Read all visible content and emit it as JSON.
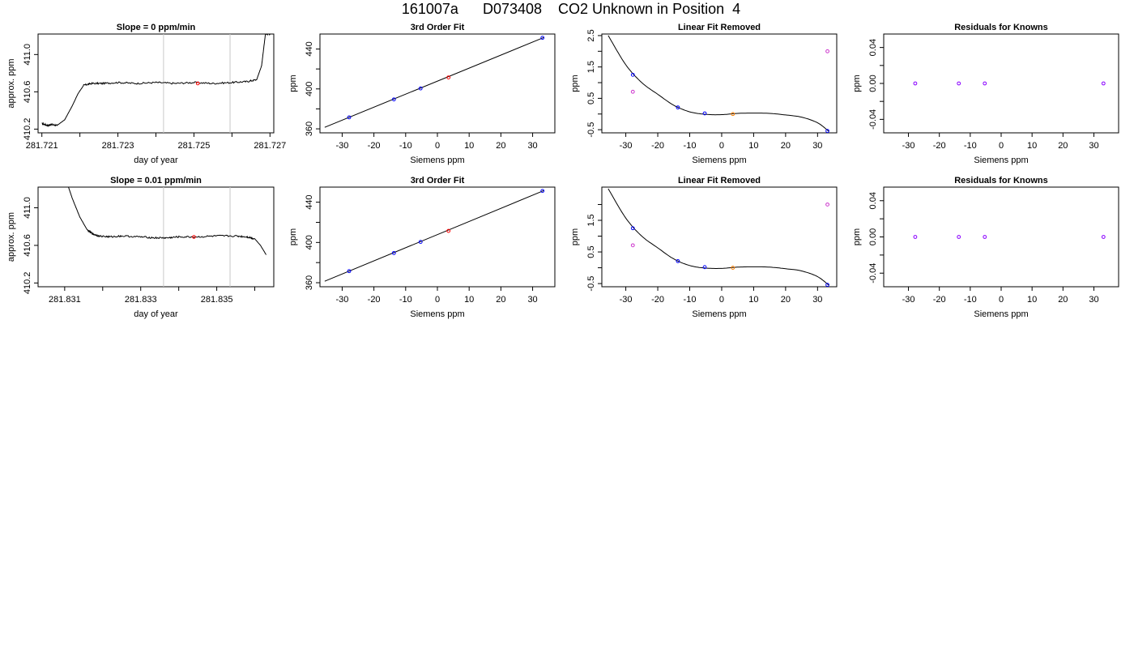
{
  "page": {
    "title": "161007a      D073408    CO2 Unknown in Position  4"
  },
  "colors": {
    "axis": "#000000",
    "trace": "#000000",
    "window_line": "#c8c8c8",
    "unknown_point": "#ff0000",
    "known_point": "#0000ff",
    "residual_point": "#8a00ff",
    "orange_point": "#ff8000",
    "magenta_point": "#cc33cc"
  },
  "chart_data": [
    {
      "id": "r1-trace",
      "type": "line",
      "title": "Slope =  0  ppm/min",
      "xlabel": "day of year",
      "ylabel": "approx. ppm",
      "xlim": [
        281.7209,
        281.7271
      ],
      "ylim": [
        410.16,
        411.22
      ],
      "xticks": [
        281.721,
        281.722,
        281.723,
        281.724,
        281.725,
        281.726,
        281.727
      ],
      "xtick_labels": [
        "281.721",
        "",
        "281.723",
        "",
        "281.725",
        "",
        "281.727"
      ],
      "yticks": [
        410.2,
        410.6,
        411.0
      ],
      "ytick_labels": [
        "410.2",
        "410.6",
        "411.0"
      ],
      "vlines": [
        281.7242,
        281.72595
      ],
      "series": [
        {
          "x": [
            281.721,
            281.72115,
            281.72125,
            281.7214,
            281.7216,
            281.7218,
            281.72195,
            281.7221,
            281.7223,
            281.7226,
            281.723,
            281.7235,
            281.724,
            281.7245,
            281.725,
            281.7255,
            281.726,
            281.7264,
            281.72665,
            281.72678,
            281.72688,
            281.727
          ],
          "y": [
            410.26,
            410.24,
            410.25,
            410.24,
            410.3,
            410.45,
            410.58,
            410.67,
            410.69,
            410.69,
            410.7,
            410.69,
            410.7,
            410.69,
            410.7,
            410.69,
            410.7,
            410.71,
            410.73,
            410.88,
            411.22,
            411.22
          ]
        }
      ],
      "markers": [
        {
          "x": 281.7251,
          "y": 410.69,
          "color": "#ff0000"
        }
      ]
    },
    {
      "id": "r1-fit",
      "type": "scatter",
      "title": "3rd Order Fit",
      "xlabel": "Siemens ppm",
      "ylabel": "ppm",
      "xlim": [
        -37,
        37
      ],
      "ylim": [
        356,
        455
      ],
      "xticks": [
        -30,
        -20,
        -10,
        0,
        10,
        20,
        30
      ],
      "xtick_labels": [
        "-30",
        "-20",
        "-10",
        "0",
        "10",
        "20",
        "30"
      ],
      "yticks": [
        360,
        400,
        440
      ],
      "ytick_labels": [
        "360",
        "400",
        "440"
      ],
      "minor_yticks": [
        380,
        420
      ],
      "fit_line": {
        "x": [
          -35.5,
          33.5
        ],
        "y": [
          361.5,
          451.5
        ]
      },
      "points": [
        {
          "x": -27.8,
          "y": 371.5,
          "color": "#0000ff"
        },
        {
          "x": -13.7,
          "y": 389.5,
          "color": "#0000ff"
        },
        {
          "x": -5.3,
          "y": 400.5,
          "color": "#0000ff"
        },
        {
          "x": 3.5,
          "y": 411.5,
          "color": "#ff0000"
        },
        {
          "x": 33.1,
          "y": 451.2,
          "color": "#0000ff"
        }
      ]
    },
    {
      "id": "r1-linres",
      "type": "scatter",
      "title": "Linear Fit Removed",
      "xlabel": "Siemens ppm",
      "ylabel": "ppm",
      "xlim": [
        -37.5,
        36
      ],
      "ylim": [
        -0.6,
        2.55
      ],
      "xticks": [
        -30,
        -20,
        -10,
        0,
        10,
        20,
        30
      ],
      "xtick_labels": [
        "-30",
        "-20",
        "-10",
        "0",
        "10",
        "20",
        "30"
      ],
      "yticks": [
        -0.5,
        0.5,
        1.5,
        2.5
      ],
      "ytick_labels": [
        "-0.5",
        "0.5",
        "1.5",
        "2.5"
      ],
      "minor_yticks": [
        0,
        1,
        2
      ],
      "curve": {
        "x": [
          -35.5,
          -30,
          -25,
          -20,
          -15,
          -10,
          -5,
          0,
          5,
          10,
          15,
          20,
          25,
          30,
          33.5
        ],
        "y": [
          2.5,
          1.57,
          1.0,
          0.63,
          0.28,
          0.07,
          -0.01,
          -0.02,
          0.02,
          0.03,
          0.02,
          -0.03,
          -0.1,
          -0.28,
          -0.55
        ]
      },
      "points": [
        {
          "x": -27.8,
          "y": 1.25,
          "color": "#0000ff"
        },
        {
          "x": -27.8,
          "y": 0.71,
          "color": "#cc33cc"
        },
        {
          "x": -13.7,
          "y": 0.21,
          "color": "#0000ff"
        },
        {
          "x": -5.3,
          "y": 0.02,
          "color": "#0000ff"
        },
        {
          "x": 3.5,
          "y": 0.0,
          "color": "#ff8000"
        },
        {
          "x": 33.1,
          "y": 2.0,
          "color": "#cc33cc"
        },
        {
          "x": 33.1,
          "y": -0.54,
          "color": "#0000ff"
        }
      ]
    },
    {
      "id": "r1-resid",
      "type": "scatter",
      "title": "Residuals for Knowns",
      "xlabel": "Siemens ppm",
      "ylabel": "ppm",
      "xlim": [
        -38,
        38
      ],
      "ylim": [
        -0.055,
        0.055
      ],
      "xticks": [
        -30,
        -20,
        -10,
        0,
        10,
        20,
        30
      ],
      "xtick_labels": [
        "-30",
        "-20",
        "-10",
        "0",
        "10",
        "20",
        "30"
      ],
      "yticks": [
        -0.04,
        0.0,
        0.04
      ],
      "ytick_labels": [
        "-0.04",
        "0.00",
        "0.04"
      ],
      "minor_yticks": [
        -0.02,
        0.02
      ],
      "points": [
        {
          "x": -27.8,
          "y": 0,
          "color": "#8a00ff"
        },
        {
          "x": -13.7,
          "y": 0,
          "color": "#8a00ff"
        },
        {
          "x": -5.3,
          "y": 0,
          "color": "#8a00ff"
        },
        {
          "x": 33.1,
          "y": 0,
          "color": "#8a00ff"
        }
      ]
    },
    {
      "id": "r2-trace",
      "type": "line",
      "title": "Slope =  0.01  ppm/min",
      "xlabel": "day of year",
      "ylabel": "approx. ppm",
      "xlim": [
        281.8303,
        281.8365
      ],
      "ylim": [
        410.16,
        411.22
      ],
      "xticks": [
        281.831,
        281.832,
        281.833,
        281.834,
        281.835,
        281.836
      ],
      "xtick_labels": [
        "281.831",
        "",
        "281.833",
        "",
        "281.835",
        ""
      ],
      "yticks": [
        410.2,
        410.6,
        411.0
      ],
      "ytick_labels": [
        "410.2",
        "410.6",
        "411.0"
      ],
      "vlines": [
        281.8336,
        281.83535
      ],
      "series": [
        {
          "x": [
            281.8311,
            281.8312,
            281.8314,
            281.8316,
            281.83175,
            281.8319,
            281.8322,
            281.8325,
            281.833,
            281.8334,
            281.8337,
            281.834,
            281.8345,
            281.835,
            281.8355,
            281.8358,
            281.836,
            281.83615,
            281.8363
          ],
          "y": [
            411.22,
            411.1,
            410.9,
            410.76,
            410.72,
            410.7,
            410.69,
            410.7,
            410.69,
            410.68,
            410.68,
            410.69,
            410.69,
            410.7,
            410.7,
            410.69,
            410.67,
            410.6,
            410.5
          ]
        }
      ],
      "markers": [
        {
          "x": 281.8344,
          "y": 410.69,
          "color": "#ff0000"
        }
      ]
    },
    {
      "id": "r2-fit",
      "type": "scatter",
      "title": "3rd Order Fit",
      "xlabel": "Siemens ppm",
      "ylabel": "ppm",
      "xlim": [
        -37,
        37
      ],
      "ylim": [
        356,
        455
      ],
      "xticks": [
        -30,
        -20,
        -10,
        0,
        10,
        20,
        30
      ],
      "xtick_labels": [
        "-30",
        "-20",
        "-10",
        "0",
        "10",
        "20",
        "30"
      ],
      "yticks": [
        360,
        400,
        440
      ],
      "ytick_labels": [
        "360",
        "400",
        "440"
      ],
      "minor_yticks": [
        380,
        420
      ],
      "fit_line": {
        "x": [
          -35.5,
          33.5
        ],
        "y": [
          361.5,
          451.5
        ]
      },
      "points": [
        {
          "x": -27.8,
          "y": 371.5,
          "color": "#0000ff"
        },
        {
          "x": -13.7,
          "y": 389.5,
          "color": "#0000ff"
        },
        {
          "x": -5.3,
          "y": 400.5,
          "color": "#0000ff"
        },
        {
          "x": 3.5,
          "y": 411.5,
          "color": "#ff0000"
        },
        {
          "x": 33.1,
          "y": 451.2,
          "color": "#0000ff"
        }
      ]
    },
    {
      "id": "r2-linres",
      "type": "scatter",
      "title": "Linear Fit Removed",
      "xlabel": "Siemens ppm",
      "ylabel": "ppm",
      "xlim": [
        -37.5,
        36
      ],
      "ylim": [
        -0.6,
        2.55
      ],
      "xticks": [
        -30,
        -20,
        -10,
        0,
        10,
        20,
        30
      ],
      "xtick_labels": [
        "-30",
        "-20",
        "-10",
        "0",
        "10",
        "20",
        "30"
      ],
      "yticks": [
        -0.5,
        0.5,
        1.5
      ],
      "ytick_labels": [
        "-0.5",
        "0.5",
        "1.5"
      ],
      "minor_yticks": [
        0,
        1,
        2
      ],
      "curve": {
        "x": [
          -35.5,
          -30,
          -25,
          -20,
          -15,
          -10,
          -5,
          0,
          5,
          10,
          15,
          20,
          25,
          30,
          33.5
        ],
        "y": [
          2.5,
          1.57,
          1.0,
          0.63,
          0.28,
          0.07,
          -0.01,
          -0.02,
          0.02,
          0.03,
          0.02,
          -0.03,
          -0.1,
          -0.28,
          -0.55
        ]
      },
      "points": [
        {
          "x": -27.8,
          "y": 1.25,
          "color": "#0000ff"
        },
        {
          "x": -27.8,
          "y": 0.71,
          "color": "#cc33cc"
        },
        {
          "x": -13.7,
          "y": 0.21,
          "color": "#0000ff"
        },
        {
          "x": -5.3,
          "y": 0.02,
          "color": "#0000ff"
        },
        {
          "x": 3.5,
          "y": 0.0,
          "color": "#ff8000"
        },
        {
          "x": 33.1,
          "y": 2.0,
          "color": "#cc33cc"
        },
        {
          "x": 33.1,
          "y": -0.54,
          "color": "#0000ff"
        }
      ]
    },
    {
      "id": "r2-resid",
      "type": "scatter",
      "title": "Residuals for Knowns",
      "xlabel": "Siemens ppm",
      "ylabel": "ppm",
      "xlim": [
        -38,
        38
      ],
      "ylim": [
        -0.055,
        0.055
      ],
      "xticks": [
        -30,
        -20,
        -10,
        0,
        10,
        20,
        30
      ],
      "xtick_labels": [
        "-30",
        "-20",
        "-10",
        "0",
        "10",
        "20",
        "30"
      ],
      "yticks": [
        -0.04,
        0.0,
        0.04
      ],
      "ytick_labels": [
        "-0.04",
        "0.00",
        "0.04"
      ],
      "minor_yticks": [
        -0.02,
        0.02
      ],
      "points": [
        {
          "x": -27.8,
          "y": 0,
          "color": "#8a00ff"
        },
        {
          "x": -13.7,
          "y": 0,
          "color": "#8a00ff"
        },
        {
          "x": -5.3,
          "y": 0,
          "color": "#8a00ff"
        },
        {
          "x": 33.1,
          "y": 0,
          "color": "#8a00ff"
        }
      ]
    }
  ]
}
